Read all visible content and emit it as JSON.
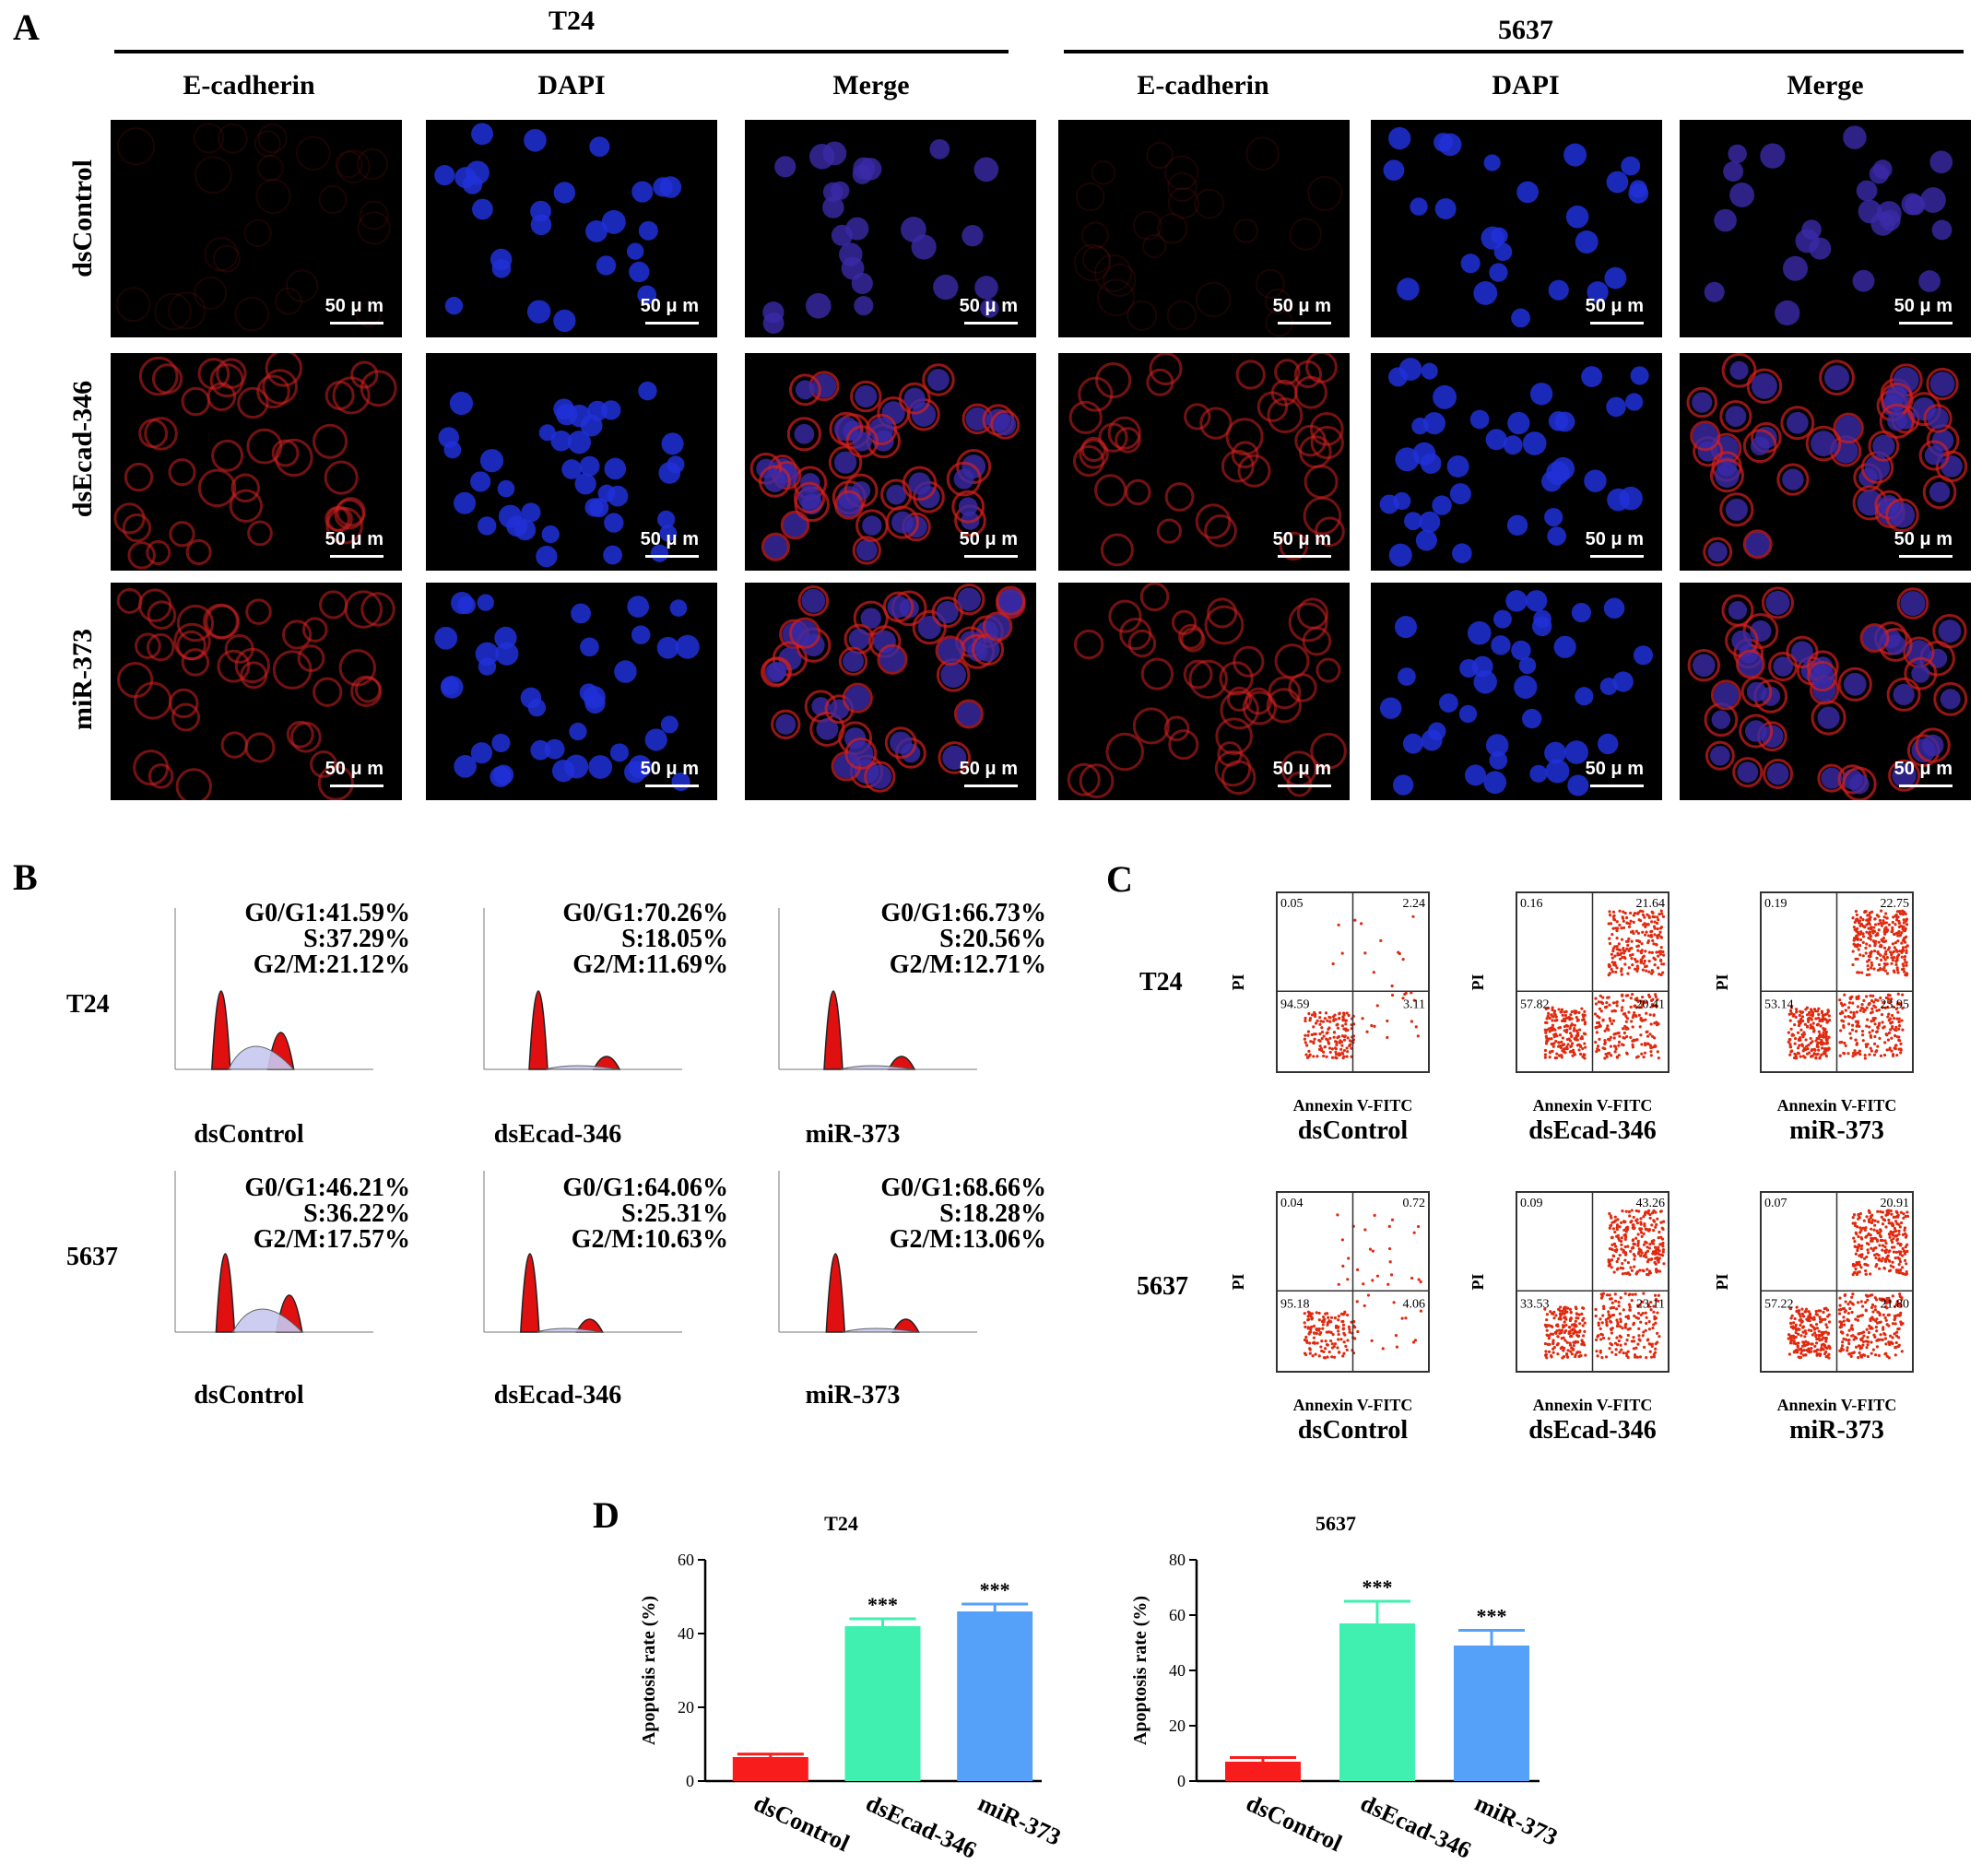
{
  "panel_a": {
    "label": "A",
    "groups": [
      {
        "name": "T24",
        "columns": [
          "E-cadherin",
          "DAPI",
          "Merge"
        ]
      },
      {
        "name": "5637",
        "columns": [
          "E-cadherin",
          "DAPI",
          "Merge"
        ]
      }
    ],
    "rows": [
      "dsControl",
      "dsEcad-346",
      "miR-373"
    ],
    "scale_bar": "50 μ m",
    "colors": {
      "ecadherin": "#d42020",
      "dapi": "#2030d8"
    }
  },
  "panel_b": {
    "label": "B",
    "cell_lines": [
      "T24",
      "5637"
    ],
    "conditions": [
      "dsControl",
      "dsEcad-346",
      "miR-373"
    ],
    "stats": [
      [
        {
          "g0g1": "G0/G1:41.59%",
          "s": "S:37.29%",
          "g2m": "G2/M:21.12%"
        },
        {
          "g0g1": "G0/G1:70.26%",
          "s": "S:18.05%",
          "g2m": "G2/M:11.69%"
        },
        {
          "g0g1": "G0/G1:66.73%",
          "s": "S:20.56%",
          "g2m": "G2/M:12.71%"
        }
      ],
      [
        {
          "g0g1": "G0/G1:46.21%",
          "s": "S:36.22%",
          "g2m": "G2/M:17.57%"
        },
        {
          "g0g1": "G0/G1:64.06%",
          "s": "S:25.31%",
          "g2m": "G2/M:10.63%"
        },
        {
          "g0g1": "G0/G1:68.66%",
          "s": "S:18.28%",
          "g2m": "G2/M:13.06%"
        }
      ]
    ]
  },
  "panel_c": {
    "label": "C",
    "cell_lines": [
      "T24",
      "5637"
    ],
    "conditions": [
      "dsControl",
      "dsEcad-346",
      "miR-373"
    ],
    "xlabel": "Annexin V-FITC",
    "ylabel": "PI",
    "quadrants": [
      [
        {
          "ul": "0.05",
          "ur": "2.24",
          "ll": "94.59",
          "lr": "3.11"
        },
        {
          "ul": "0.16",
          "ur": "21.64",
          "ll": "57.82",
          "lr": "20.41"
        },
        {
          "ul": "0.19",
          "ur": "22.75",
          "ll": "53.14",
          "lr": "23.95"
        }
      ],
      [
        {
          "ul": "0.04",
          "ur": "0.72",
          "ll": "95.18",
          "lr": "4.06"
        },
        {
          "ul": "0.09",
          "ur": "43.26",
          "ll": "33.53",
          "lr": "23.11"
        },
        {
          "ul": "0.07",
          "ur": "20.91",
          "ll": "57.22",
          "lr": "21.80"
        }
      ]
    ]
  },
  "chart_data": [
    {
      "type": "bar",
      "title": "T24",
      "categories": [
        "dsControl",
        "dsEcad-346",
        "miR-373"
      ],
      "values": [
        6.5,
        42,
        46
      ],
      "errors": [
        0.8,
        2,
        2
      ],
      "significance": [
        "",
        "***",
        "***"
      ],
      "ylabel": "Apoptosis rate (%)",
      "ylim": [
        0,
        60
      ],
      "yticks": [
        0,
        20,
        40,
        60
      ],
      "colors": [
        "#f81c1c",
        "#3ff0b0",
        "#55a0f8"
      ]
    },
    {
      "type": "bar",
      "title": "5637",
      "categories": [
        "dsControl",
        "dsEcad-346",
        "miR-373"
      ],
      "values": [
        7,
        57,
        49
      ],
      "errors": [
        1.5,
        8,
        5.5
      ],
      "significance": [
        "",
        "***",
        "***"
      ],
      "ylabel": "Apoptosis rate (%)",
      "ylim": [
        0,
        80
      ],
      "yticks": [
        0,
        20,
        40,
        60,
        80
      ],
      "colors": [
        "#f81c1c",
        "#3ff0b0",
        "#55a0f8"
      ]
    }
  ],
  "panel_d": {
    "label": "D"
  }
}
